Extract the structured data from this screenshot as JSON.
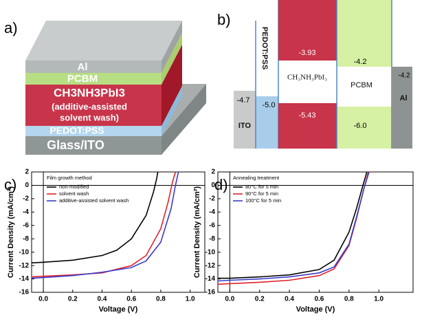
{
  "panel_labels": [
    "a)",
    "b)",
    "c)",
    "d)"
  ],
  "device_stack": {
    "layers": [
      "Al",
      "PCBM",
      "CH3NH3PbI3",
      "(additive-assisted",
      "solvent wash)",
      "PEDOT:PSS",
      "Glass/ITO"
    ]
  },
  "energy_diagram": {
    "ito": {
      "label": "ITO",
      "level": "-4.7"
    },
    "pedot": {
      "label": "PEDOT:PSS",
      "level": "-5.0"
    },
    "perovskite": {
      "label": "CH₃NH₃PbI₃",
      "lumo": "-3.93",
      "homo": "-5.43"
    },
    "pcbm": {
      "label": "PCBM",
      "lumo": "-4.2",
      "homo": "-6.0"
    },
    "al": {
      "label": "Al",
      "level": "-4.2"
    }
  },
  "chart_data": [
    {
      "type": "line",
      "legend_title": "Film growth method",
      "x_label": "Voltage (V)",
      "y_label": "Current Density (mA/cm²)",
      "xlim": [
        -0.08,
        1.1
      ],
      "ylim": [
        -16,
        2
      ],
      "xticks": [
        {
          "value": 0,
          "label": "0.0"
        },
        {
          "value": 0.2,
          "label": "0.2"
        },
        {
          "value": 0.4,
          "label": "0.4"
        },
        {
          "value": 0.6,
          "label": "0.6"
        },
        {
          "value": 0.8,
          "label": "0.8"
        },
        {
          "value": 1,
          "label": "1.0"
        }
      ],
      "yticks": [
        2,
        0,
        -2,
        -4,
        -6,
        -8,
        -10,
        -12,
        -14,
        -16
      ],
      "series": [
        {
          "name": "non-modified",
          "color": "#000000",
          "x": [
            -0.08,
            0,
            0.2,
            0.4,
            0.5,
            0.6,
            0.7,
            0.75,
            0.77,
            0.78
          ],
          "values": [
            -11.6,
            -11.5,
            -11.2,
            -10.5,
            -9.7,
            -8,
            -4.5,
            -1,
            0.8,
            2
          ]
        },
        {
          "name": "solvent wash",
          "color": "#e0202a",
          "x": [
            -0.08,
            0,
            0.2,
            0.4,
            0.6,
            0.7,
            0.8,
            0.85,
            0.88,
            0.9
          ],
          "values": [
            -13.7,
            -13.6,
            -13.4,
            -13.1,
            -12,
            -10.5,
            -6.5,
            -2.5,
            0.5,
            2
          ]
        },
        {
          "name": "additive-assisted solvent wash",
          "color": "#3a3ac8",
          "x": [
            -0.08,
            0,
            0.2,
            0.4,
            0.6,
            0.7,
            0.8,
            0.87,
            0.9,
            0.92
          ],
          "values": [
            -13.9,
            -13.8,
            -13.5,
            -13,
            -12.3,
            -11.3,
            -8.5,
            -3.5,
            0,
            2
          ]
        }
      ]
    },
    {
      "type": "line",
      "legend_title": "Annealing treatment",
      "x_label": "Voltage (V)",
      "y_label": "Current Density (mA/cm²)",
      "xlim": [
        -0.08,
        1.23
      ],
      "ylim": [
        -16,
        2
      ],
      "xticks": [
        {
          "value": 0,
          "label": "0.0"
        },
        {
          "value": 0.2,
          "label": "0.2"
        },
        {
          "value": 0.4,
          "label": "0.4"
        },
        {
          "value": 0.6,
          "label": "0.6"
        },
        {
          "value": 0.8,
          "label": "0.8"
        },
        {
          "value": 1,
          "label": "1.0"
        }
      ],
      "yticks": [
        2,
        0,
        -2,
        -4,
        -6,
        -8,
        -10,
        -12,
        -14,
        -16
      ],
      "series": [
        {
          "name": "80°C for 5 min",
          "color": "#000000",
          "x": [
            -0.08,
            0,
            0.2,
            0.4,
            0.6,
            0.7,
            0.8,
            0.85,
            0.9,
            0.92
          ],
          "values": [
            -13.9,
            -13.9,
            -13.7,
            -13.4,
            -12.6,
            -11.2,
            -7,
            -3.5,
            0.5,
            2
          ]
        },
        {
          "name": "90°C for 5 min",
          "color": "#e0202a",
          "x": [
            -0.08,
            0,
            0.2,
            0.4,
            0.6,
            0.7,
            0.8,
            0.85,
            0.9,
            0.93
          ],
          "values": [
            -14.8,
            -14.7,
            -14.5,
            -14.2,
            -13.5,
            -12.5,
            -9,
            -5,
            -0.5,
            2
          ]
        },
        {
          "name": "100°C for 5 min",
          "color": "#3a3ac8",
          "x": [
            -0.08,
            0,
            0.2,
            0.4,
            0.6,
            0.7,
            0.8,
            0.85,
            0.9,
            0.935
          ],
          "values": [
            -14.3,
            -14.2,
            -14,
            -13.7,
            -13.1,
            -12.2,
            -8.8,
            -4.8,
            -0.5,
            2
          ]
        }
      ]
    }
  ]
}
